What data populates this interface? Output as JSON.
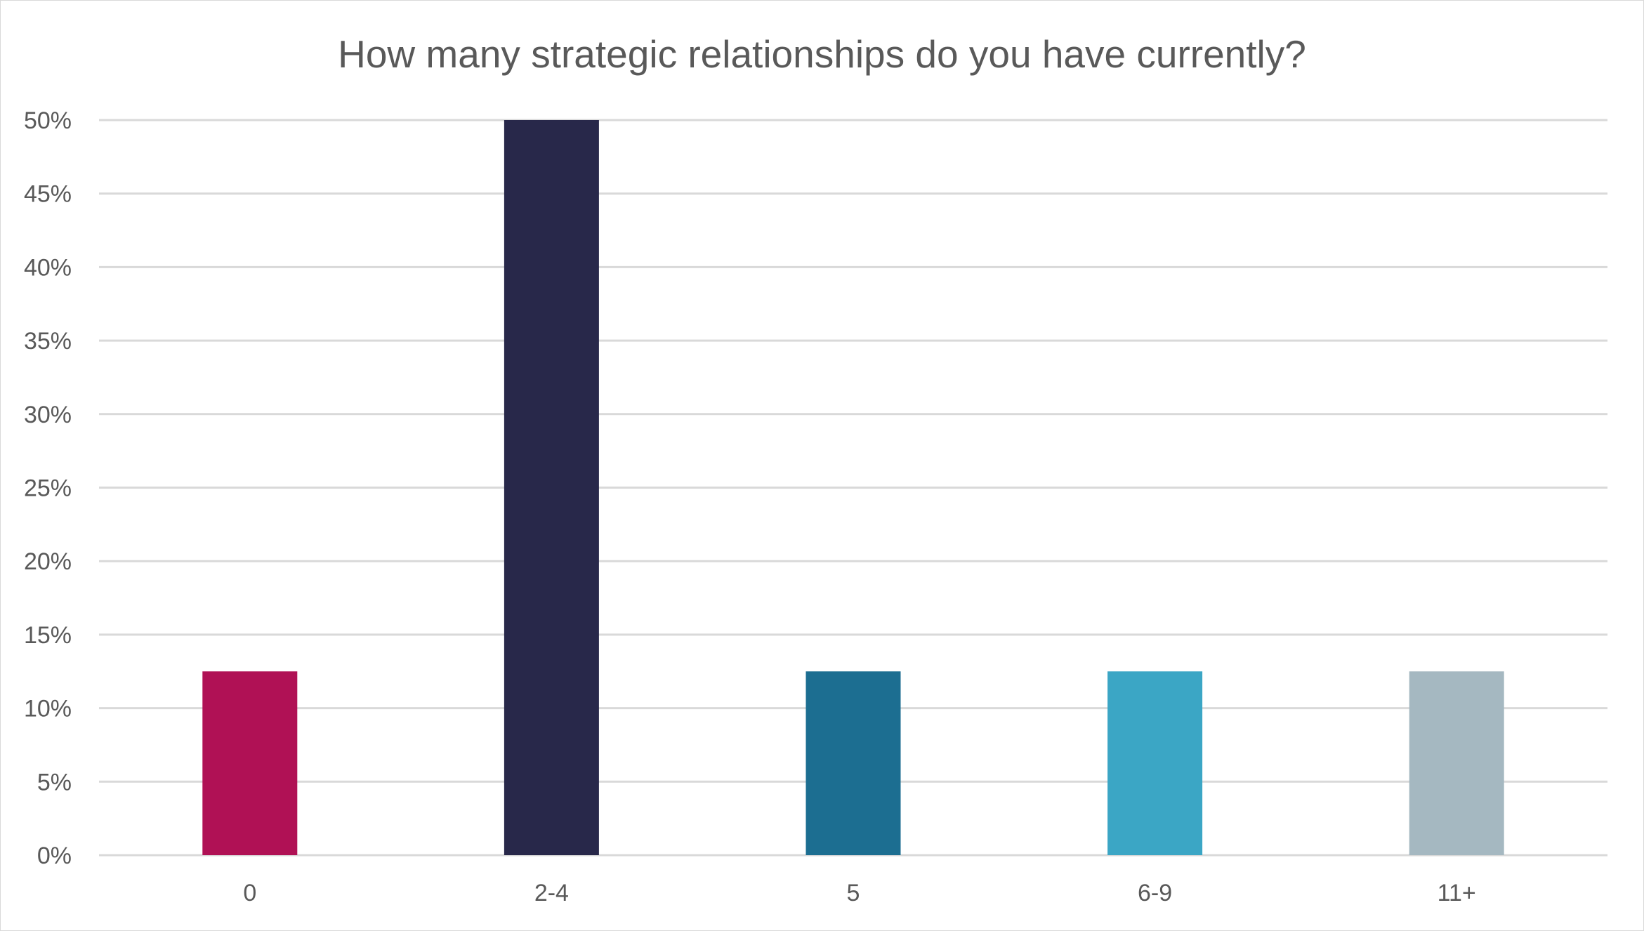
{
  "chart_data": {
    "type": "bar",
    "title": "How many strategic relationships do you have currently?",
    "categories": [
      "0",
      "2-4",
      "5",
      "6-9",
      "11+"
    ],
    "values": [
      12.5,
      50,
      12.5,
      12.5,
      12.5
    ],
    "unit": "%",
    "bar_colors": [
      "#b01155",
      "#28284a",
      "#1c6e91",
      "#3ba6c5",
      "#a5b8c1"
    ],
    "ylim": [
      0,
      50
    ],
    "yticks": [
      0,
      5,
      10,
      15,
      20,
      25,
      30,
      35,
      40,
      45,
      50
    ],
    "ytick_labels": [
      "0%",
      "5%",
      "10%",
      "15%",
      "20%",
      "25%",
      "30%",
      "35%",
      "40%",
      "45%",
      "50%"
    ],
    "xlabel": "",
    "ylabel": "",
    "grid": true,
    "legend": "none",
    "gridline_color": "#d9d9d9",
    "text_color": "#595959"
  }
}
